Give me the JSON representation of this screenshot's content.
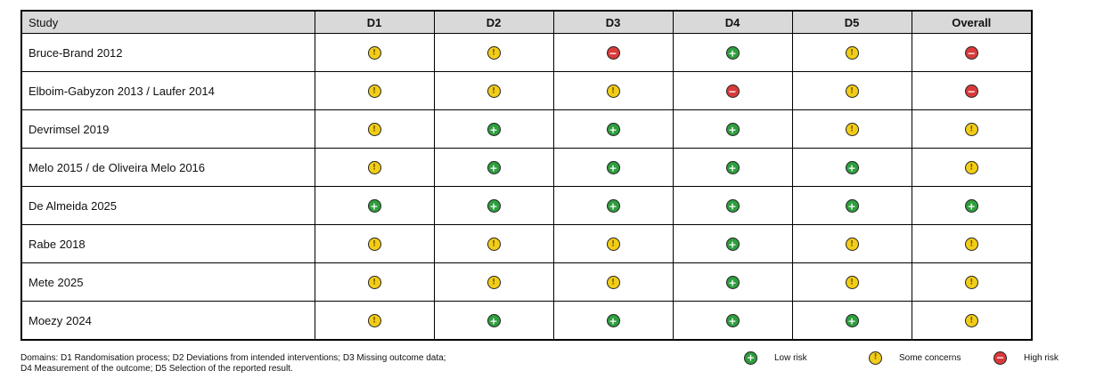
{
  "table": {
    "headers": [
      "Study",
      "D1",
      "D2",
      "D3",
      "D4",
      "D5",
      "Overall"
    ],
    "rows": [
      {
        "study": "Bruce-Brand 2012",
        "ratings": [
          "some",
          "some",
          "high",
          "low",
          "some",
          "high"
        ]
      },
      {
        "study": "Elboim-Gabyzon 2013 / Laufer 2014",
        "ratings": [
          "some",
          "some",
          "some",
          "high",
          "some",
          "high"
        ]
      },
      {
        "study": "Devrimsel 2019",
        "ratings": [
          "some",
          "low",
          "low",
          "low",
          "some",
          "some"
        ]
      },
      {
        "study": "Melo 2015 / de Oliveira Melo 2016",
        "ratings": [
          "some",
          "low",
          "low",
          "low",
          "low",
          "some"
        ]
      },
      {
        "study": "De Almeida 2025",
        "ratings": [
          "low",
          "low",
          "low",
          "low",
          "low",
          "low"
        ]
      },
      {
        "study": "Rabe 2018",
        "ratings": [
          "some",
          "some",
          "some",
          "low",
          "some",
          "some"
        ]
      },
      {
        "study": "Mete 2025",
        "ratings": [
          "some",
          "some",
          "some",
          "low",
          "some",
          "some"
        ]
      },
      {
        "study": "Moezy 2024",
        "ratings": [
          "some",
          "low",
          "low",
          "low",
          "low",
          "some"
        ]
      }
    ]
  },
  "footnote": {
    "line1": "Domains: D1 Randomisation process; D2 Deviations from intended interventions; D3 Missing outcome data;",
    "line2": "D4 Measurement of the outcome; D5 Selection of the reported result."
  },
  "legend": {
    "low": "Low risk",
    "some": "Some concerns",
    "high": "High risk"
  },
  "colors": {
    "low": "#2e9e3e",
    "some": "#f2cd17",
    "high": "#d93a3a",
    "header_bg": "#d9d9d9"
  }
}
